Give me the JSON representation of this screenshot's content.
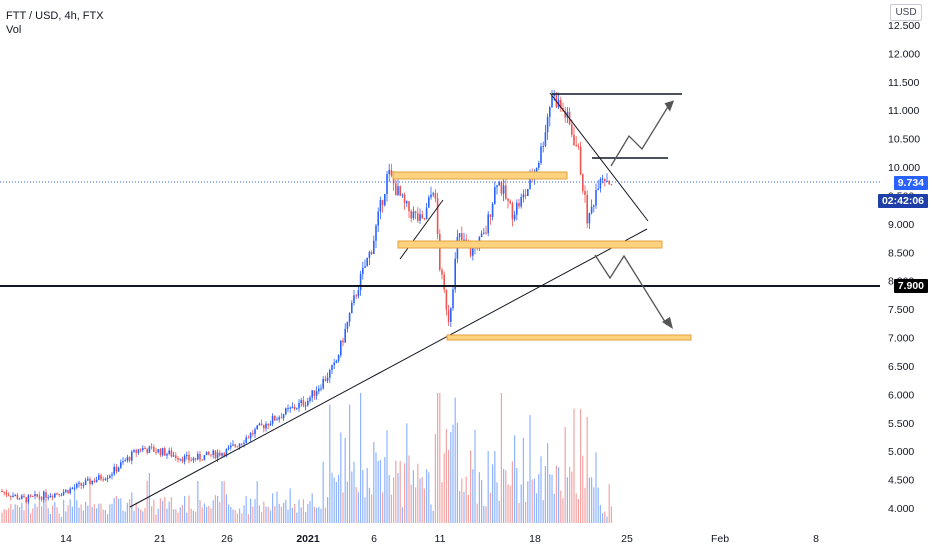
{
  "header": {
    "symbol_line": "FTT / USD, 4h, FTX",
    "indicator": "Vol"
  },
  "currency": "USD",
  "price_tags": {
    "last_price": "9.734",
    "countdown": "02:42:06",
    "level": "7.900"
  },
  "colors": {
    "up": "#2962ff",
    "down": "#ef5350",
    "up_vol": "#90b4ff",
    "down_vol": "#f3a4a3",
    "zone_fill": "#ffd27f",
    "zone_stroke": "#e0a23c",
    "last_price_tag": "#2962ff",
    "countdown_tag": "#1e3fa8",
    "level_tag": "#000000"
  },
  "chart_data": {
    "type": "candlestick",
    "title": "FTT / USD, 4h, FTX",
    "y_axis": {
      "ticks": [
        "12.500",
        "12.000",
        "11.500",
        "11.000",
        "10.500",
        "10.000",
        "9.500",
        "9.000",
        "8.500",
        "8.000",
        "7.500",
        "7.000",
        "6.500",
        "6.000",
        "5.500",
        "5.000",
        "4.500",
        "4.000"
      ],
      "range": [
        3.9,
        12.6
      ]
    },
    "x_axis": {
      "ticks": [
        "14",
        "21",
        "26",
        "2021",
        "6",
        "11",
        "18",
        "25",
        "Feb",
        "8"
      ]
    },
    "price_path": [
      {
        "date": "Dec 10",
        "price": 4.3
      },
      {
        "date": "Dec 12",
        "price": 4.15
      },
      {
        "date": "Dec 14",
        "price": 4.3
      },
      {
        "date": "Dec 16",
        "price": 4.6
      },
      {
        "date": "Dec 19",
        "price": 5.05
      },
      {
        "date": "Dec 21",
        "price": 5.0
      },
      {
        "date": "Dec 23",
        "price": 4.85
      },
      {
        "date": "Dec 26",
        "price": 5.0
      },
      {
        "date": "Dec 29",
        "price": 5.5
      },
      {
        "date": "Jan 1",
        "price": 5.9
      },
      {
        "date": "Jan 3",
        "price": 6.5
      },
      {
        "date": "Jan 5",
        "price": 7.9
      },
      {
        "date": "Jan 6",
        "price": 8.6
      },
      {
        "date": "Jan 7",
        "price": 9.9
      },
      {
        "date": "Jan 8",
        "price": 9.3
      },
      {
        "date": "Jan 9",
        "price": 9.0
      },
      {
        "date": "Jan 10",
        "price": 9.7
      },
      {
        "date": "Jan 11",
        "price": 8.2
      },
      {
        "date": "Jan 11.6",
        "price": 7.3
      },
      {
        "date": "Jan 12",
        "price": 8.8
      },
      {
        "date": "Jan 13",
        "price": 8.5
      },
      {
        "date": "Jan 14",
        "price": 8.8
      },
      {
        "date": "Jan 15",
        "price": 9.8
      },
      {
        "date": "Jan 16",
        "price": 9.2
      },
      {
        "date": "Jan 17",
        "price": 9.5
      },
      {
        "date": "Jan 18",
        "price": 10.2
      },
      {
        "date": "Jan 19",
        "price": 11.3
      },
      {
        "date": "Jan 20",
        "price": 10.9
      },
      {
        "date": "Jan 21",
        "price": 10.3
      },
      {
        "date": "Jan 22",
        "price": 9.0
      },
      {
        "date": "Jan 23",
        "price": 9.9
      },
      {
        "date": "Jan 24",
        "price": 9.73
      }
    ],
    "levels": {
      "horizontal_support": 7.9,
      "last_price": 9.734
    },
    "zones": [
      {
        "from": 9.77,
        "to": 9.88
      },
      {
        "from": 8.58,
        "to": 8.71
      },
      {
        "from": 6.95,
        "to": 7.05
      }
    ]
  }
}
